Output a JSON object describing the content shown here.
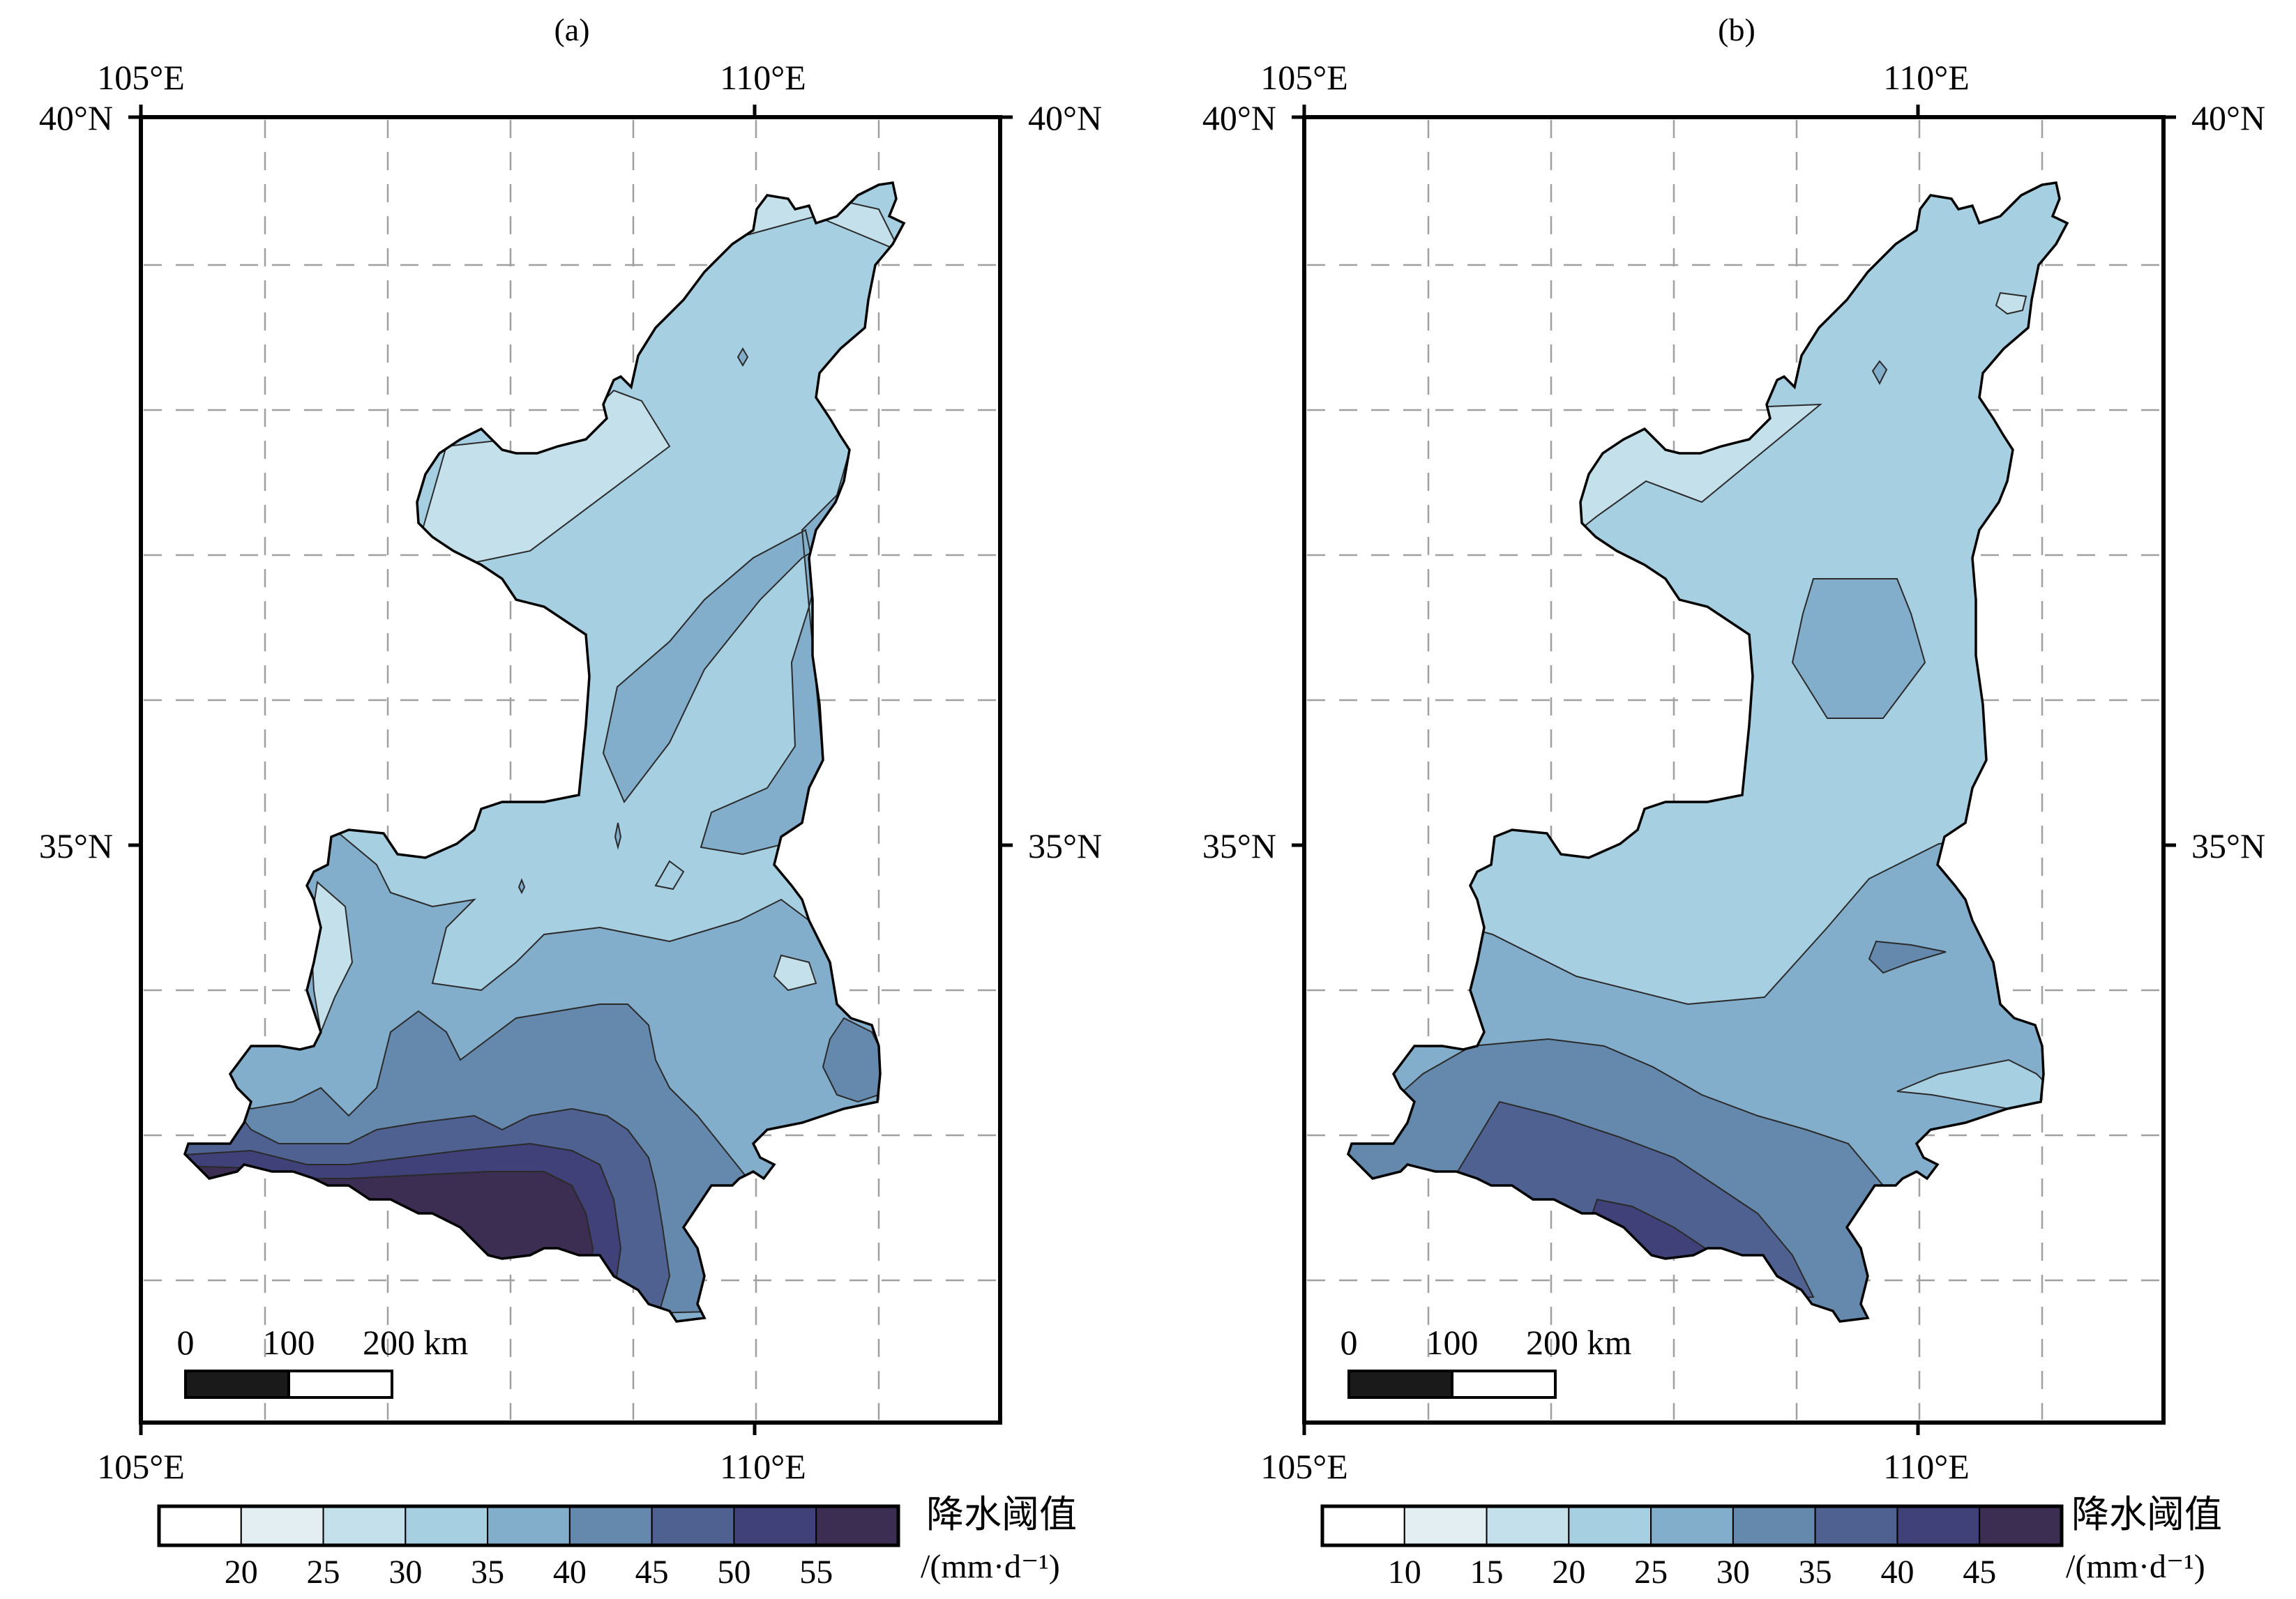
{
  "panels": [
    {
      "label": "(a)",
      "x_ticks": [
        "105°E",
        "110°E"
      ],
      "y_ticks": [
        "40°N",
        "35°N"
      ],
      "scale_bar": {
        "labels": [
          "0",
          "100",
          "200 km"
        ]
      },
      "legend": {
        "title": "降水阈值",
        "unit": "/(mm·d⁻¹)",
        "ticks": [
          "20",
          "25",
          "30",
          "35",
          "40",
          "45",
          "50",
          "55"
        ],
        "colors": [
          "#ffffff",
          "#e2eef1",
          "#c4e0ea",
          "#a6cfe1",
          "#82aecb",
          "#6589ad",
          "#4f6191",
          "#3f4178",
          "#3c2e52"
        ]
      }
    },
    {
      "label": "(b)",
      "x_ticks": [
        "105°E",
        "110°E"
      ],
      "y_ticks": [
        "40°N",
        "35°N"
      ],
      "scale_bar": {
        "labels": [
          "0",
          "100",
          "200 km"
        ]
      },
      "legend": {
        "title": "降水阈值",
        "unit": "/(mm·d⁻¹)",
        "ticks": [
          "10",
          "15",
          "20",
          "25",
          "30",
          "35",
          "40",
          "45"
        ],
        "colors": [
          "#ffffff",
          "#e2eef1",
          "#c4e0ea",
          "#a6cfe1",
          "#82aecb",
          "#6589ad",
          "#4f6191",
          "#3f4178",
          "#3c2e52"
        ]
      }
    }
  ]
}
